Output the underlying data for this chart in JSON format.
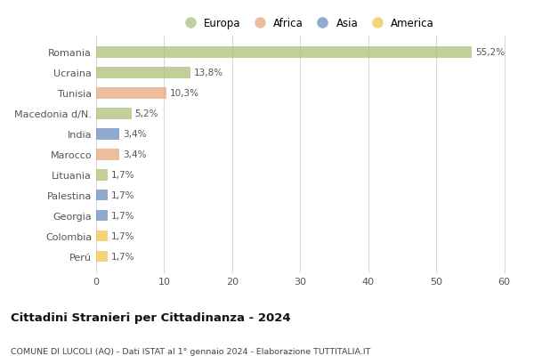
{
  "countries": [
    "Romania",
    "Ucraina",
    "Tunisia",
    "Macedonia d/N.",
    "India",
    "Marocco",
    "Lituania",
    "Palestina",
    "Georgia",
    "Colombia",
    "Perú"
  ],
  "values": [
    55.2,
    13.8,
    10.3,
    5.2,
    3.4,
    3.4,
    1.7,
    1.7,
    1.7,
    1.7,
    1.7
  ],
  "labels": [
    "55,2%",
    "13,8%",
    "10,3%",
    "5,2%",
    "3,4%",
    "3,4%",
    "1,7%",
    "1,7%",
    "1,7%",
    "1,7%",
    "1,7%"
  ],
  "continents": [
    "Europa",
    "Europa",
    "Africa",
    "Europa",
    "Asia",
    "Africa",
    "Europa",
    "Asia",
    "Asia",
    "America",
    "America"
  ],
  "continent_colors": {
    "Europa": "#adc179",
    "Africa": "#e8a87c",
    "Asia": "#6b8cbf",
    "America": "#f0c84a"
  },
  "legend_order": [
    "Europa",
    "Africa",
    "Asia",
    "America"
  ],
  "xlim": [
    0,
    62
  ],
  "xticks": [
    0,
    10,
    20,
    30,
    40,
    50,
    60
  ],
  "title": "Cittadini Stranieri per Cittadinanza - 2024",
  "subtitle": "COMUNE DI LUCOLI (AQ) - Dati ISTAT al 1° gennaio 2024 - Elaborazione TUTTITALIA.IT",
  "background_color": "#ffffff",
  "grid_color": "#d8d8d8",
  "bar_alpha": 0.75,
  "bar_height": 0.55
}
